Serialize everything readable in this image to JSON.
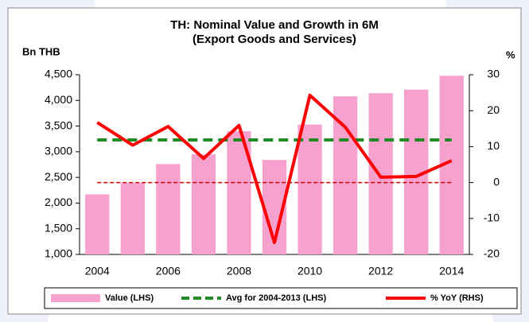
{
  "chart_data": {
    "type": "bar-line",
    "title": "TH: Nominal Value and Growth in 6M",
    "subtitle": "(Export Goods and Services)",
    "y_label": "Bn THB",
    "y2_label": "%",
    "categories": [
      "2004",
      null,
      "2006",
      null,
      "2008",
      null,
      "2010",
      null,
      "2012",
      null,
      "2014"
    ],
    "series": [
      {
        "name": "Value (LHS)",
        "type": "bar",
        "color": "#f7a1cf",
        "axis": "y",
        "values": [
          2170,
          2390,
          2760,
          2950,
          3400,
          2840,
          3530,
          4080,
          4140,
          4210,
          4480
        ]
      },
      {
        "name": "Avg for 2004-2013 (LHS)",
        "type": "line",
        "dashed": true,
        "color": "#1f8b24",
        "axis": "y",
        "values": [
          3230,
          3230,
          3230,
          3230,
          3230,
          3230,
          3230,
          3230,
          3230,
          3230,
          3230
        ]
      },
      {
        "name": "% YoY (RHS)",
        "type": "line",
        "color": "#ff0000",
        "axis": "y2",
        "values": [
          16.7,
          10.4,
          15.6,
          6.7,
          15.9,
          -16.7,
          24.3,
          15.4,
          1.5,
          1.7,
          6.1
        ]
      }
    ],
    "reference_line": {
      "value": 0,
      "axis": "y2",
      "color": "#cc0000"
    },
    "ylim": [
      1000,
      4500
    ],
    "yticks": [
      {
        "value": 1000,
        "label": "1,000"
      },
      {
        "value": 1500,
        "label": "1,500"
      },
      {
        "value": 2000,
        "label": "2,000"
      },
      {
        "value": 2500,
        "label": "2,500"
      },
      {
        "value": 3000,
        "label": "3,000"
      },
      {
        "value": 3500,
        "label": "3,500"
      },
      {
        "value": 4000,
        "label": "4,000"
      },
      {
        "value": 4500,
        "label": "4,500"
      }
    ],
    "y2lim": [
      -20,
      30
    ],
    "y2ticks": [
      -20,
      -10,
      0,
      10,
      20,
      30
    ],
    "legend": "bottom"
  }
}
